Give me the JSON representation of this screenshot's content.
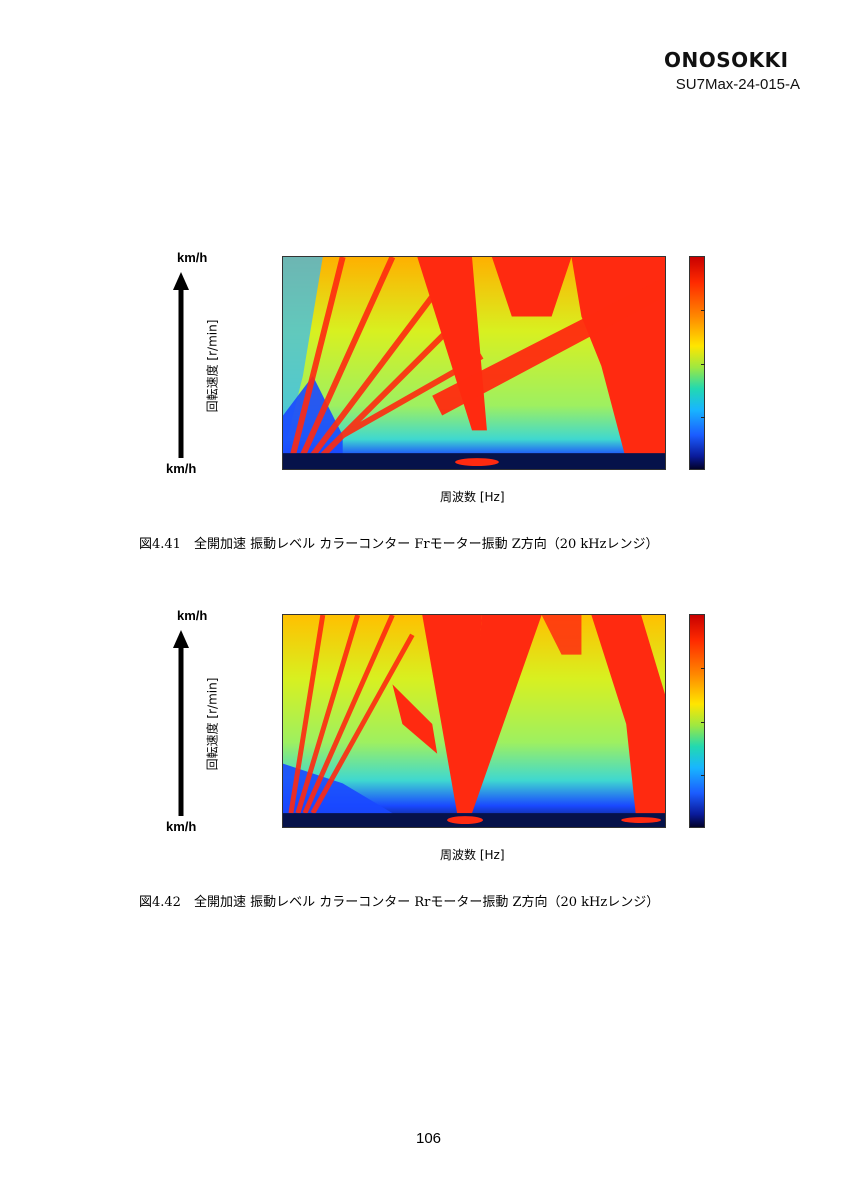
{
  "header": {
    "logo_text": "ONOSOKKI",
    "doc_id": "SU7Max-24-015-A"
  },
  "figures": [
    {
      "y_axis_top": "km/h",
      "y_axis_bottom": "km/h",
      "y_label": "回転速度 [r/min]",
      "x_label": "周波数 [Hz]",
      "caption": "図4.41　全開加速 振動レベル カラーコンター Frモーター振動 Z方向（20 kHzレンジ）"
    },
    {
      "y_axis_top": "km/h",
      "y_axis_bottom": "km/h",
      "y_label": "回転速度 [r/min]",
      "x_label": "周波数 [Hz]",
      "caption": "図4.42　全開加速 振動レベル カラーコンター Rrモーター振動 Z方向（20 kHzレンジ）"
    }
  ],
  "colors": {
    "high": "#ff2a10",
    "mid": "#c8f03c",
    "low": "#1a48ff",
    "floor": "#06124a"
  },
  "footer": {
    "page_number": "106"
  }
}
